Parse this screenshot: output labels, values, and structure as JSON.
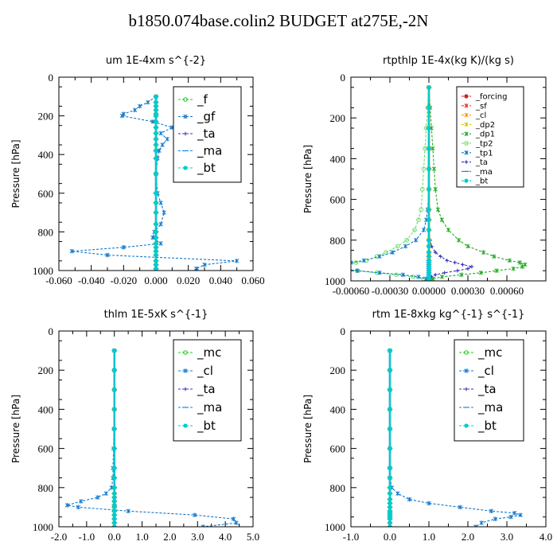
{
  "figure": {
    "title": "b1850.074base.colin2  BUDGET at275E,-2N"
  },
  "chart_data": [
    {
      "type": "line",
      "title": "um   1E-4xm s^{-2}",
      "ylabel": "Pressure [hPa]",
      "xlim": [
        -0.06,
        0.06
      ],
      "ylim": [
        1000,
        0
      ],
      "xticks": [
        -0.06,
        -0.04,
        -0.02,
        0.0,
        0.02,
        0.04,
        0.06
      ],
      "xtick_labels": [
        "-0.060",
        "-0.040",
        "-0.020",
        "0.000",
        "0.020",
        "0.040",
        "0.060"
      ],
      "yticks": [
        0,
        200,
        400,
        600,
        800,
        1000
      ],
      "grid": false,
      "legend_position": "top-right",
      "levels": [
        100,
        130,
        150,
        170,
        190,
        200,
        230,
        260,
        290,
        320,
        350,
        380,
        420,
        500,
        600,
        650,
        700,
        760,
        800,
        830,
        860,
        880,
        900,
        920,
        950,
        970,
        990,
        1000
      ],
      "series": [
        {
          "name": "_f",
          "color": "#22cc22",
          "values": [
            0,
            0,
            0,
            0,
            0,
            0,
            0,
            0,
            0,
            0,
            0,
            0,
            0,
            0,
            0,
            0,
            0,
            0,
            0,
            0,
            0,
            0,
            0,
            0,
            0,
            0,
            0,
            0
          ]
        },
        {
          "name": "_gf",
          "color": "#1177cc",
          "values": [
            0,
            -0.005,
            -0.01,
            -0.013,
            -0.02,
            -0.021,
            -0.002,
            0.01,
            0.003,
            0.007,
            0.004,
            0.002,
            0.001,
            0.0,
            0.001,
            0.003,
            0.005,
            0.003,
            -0.001,
            -0.002,
            0.003,
            -0.02,
            -0.052,
            -0.03,
            0.05,
            0.03,
            0.025,
            0.025
          ]
        },
        {
          "name": "_ta",
          "color": "#3333bb",
          "values": [
            0,
            0,
            0,
            0,
            0,
            0,
            0,
            0,
            0,
            0,
            0,
            0,
            0,
            0,
            0,
            0,
            0,
            0,
            0,
            0,
            0,
            0,
            0,
            0,
            0,
            0,
            0,
            0
          ]
        },
        {
          "name": "_ma",
          "color": "#1188dd",
          "values": [
            0,
            0,
            0,
            0,
            0,
            0,
            0,
            0,
            0,
            0,
            0,
            0,
            0,
            0,
            0,
            0,
            0,
            0,
            0,
            0,
            0,
            0,
            0,
            0,
            0,
            0,
            0,
            0
          ]
        },
        {
          "name": "_bt",
          "color": "#00cccc",
          "values": [
            0,
            0,
            0,
            0,
            0,
            0,
            0,
            0,
            0,
            0,
            0,
            0,
            0,
            0,
            0,
            0,
            0,
            0,
            0,
            0,
            0,
            0,
            0,
            0,
            0,
            0,
            0,
            0
          ]
        }
      ]
    },
    {
      "type": "line",
      "title": "rtpthlp   1E-4x(kg K)/(kg s)",
      "ylabel": "Pressure [hPa]",
      "xlim": [
        -0.0006,
        0.0009
      ],
      "ylim": [
        1000,
        0
      ],
      "xticks": [
        -0.0006,
        -0.0003,
        0.0,
        0.0003,
        0.0006
      ],
      "xtick_labels": [
        "-0.00060",
        "-0.00030",
        "0.00000",
        "0.00030",
        "0.00060"
      ],
      "yticks": [
        0,
        200,
        400,
        600,
        800,
        1000
      ],
      "grid": false,
      "legend_position": "top-right",
      "levels": [
        50,
        150,
        250,
        350,
        450,
        550,
        650,
        700,
        750,
        800,
        830,
        860,
        880,
        900,
        910,
        920,
        930,
        940,
        950,
        960,
        970,
        980,
        990,
        1000
      ],
      "series": [
        {
          "name": "_forcing",
          "color": "#cc2222",
          "values": [
            0,
            0,
            0,
            0,
            0,
            0,
            0,
            0,
            0,
            0,
            0,
            0,
            0,
            0,
            0,
            0,
            0,
            0,
            0,
            0,
            0,
            0,
            0,
            0
          ]
        },
        {
          "name": "_sf",
          "color": "#ee3333",
          "values": [
            0,
            0,
            0,
            0,
            0,
            0,
            0,
            0,
            0,
            0,
            0,
            0,
            0,
            0,
            0,
            0,
            0,
            0,
            0,
            0,
            0,
            0,
            0,
            0
          ]
        },
        {
          "name": "_cl",
          "color": "#ff9900",
          "values": [
            0,
            0,
            0,
            0,
            0,
            0,
            0,
            0,
            0,
            0,
            0,
            0,
            0,
            0,
            0,
            0,
            0,
            0,
            0,
            0,
            0,
            0,
            0,
            0
          ]
        },
        {
          "name": "_dp2",
          "color": "#cccc00",
          "values": [
            0,
            0,
            0,
            0,
            0,
            0,
            0,
            0,
            0,
            0,
            0,
            0,
            0,
            0,
            0,
            0,
            0,
            0,
            0,
            0,
            0,
            0,
            0,
            0
          ]
        },
        {
          "name": "_dp1",
          "color": "#22aa22",
          "values": [
            0,
            1e-05,
            2e-05,
            3e-05,
            4e-05,
            5e-05,
            7e-05,
            0.0001,
            0.00015,
            0.00023,
            0.0003,
            0.00042,
            0.0005,
            0.00062,
            0.0007,
            0.00074,
            0.00072,
            0.00065,
            0.00052,
            0.0004,
            0.00025,
            0.0001,
            3e-05,
            0
          ]
        },
        {
          "name": "_tp2",
          "color": "#66dd66",
          "values": [
            0,
            -1e-05,
            -2e-05,
            -3e-05,
            -4e-05,
            -5e-05,
            -6e-05,
            -8e-05,
            -0.00011,
            -0.00017,
            -0.00024,
            -0.00033,
            -0.0004,
            -0.00048,
            -0.00056,
            -0.00065,
            -0.0007,
            -0.00066,
            -0.00055,
            -0.0004,
            -0.00025,
            -0.00012,
            -4e-05,
            0
          ]
        },
        {
          "name": "_tp1",
          "color": "#1177cc",
          "values": [
            0,
            0,
            0,
            0,
            0,
            0,
            -1e-05,
            -2e-05,
            -4e-05,
            -0.0001,
            -0.00018,
            -0.00028,
            -0.00038,
            -0.0005,
            -0.0006,
            -0.00068,
            -0.00074,
            -0.00068,
            -0.00055,
            -0.00038,
            -0.0002,
            -8e-05,
            -2e-05,
            0
          ]
        },
        {
          "name": "_ta",
          "color": "#3333bb",
          "values": [
            0,
            0,
            0,
            0,
            0,
            0,
            0,
            0,
            0,
            1e-05,
            2e-05,
            5e-05,
            9e-05,
            0.00014,
            0.0002,
            0.00026,
            0.00033,
            0.0003,
            0.00022,
            0.00012,
            5e-05,
            2e-05,
            0,
            0
          ]
        },
        {
          "name": "_ma",
          "color": "#1188dd",
          "values": [
            0,
            0,
            0,
            0,
            0,
            0,
            0,
            0,
            0,
            0,
            0,
            0,
            0,
            0,
            0,
            0,
            0,
            0,
            0,
            0,
            0,
            0,
            0,
            0
          ]
        },
        {
          "name": "_bt",
          "color": "#00cccc",
          "values": [
            0,
            0,
            0,
            0,
            0,
            0,
            0,
            0,
            0,
            0,
            0,
            0,
            0,
            0,
            0,
            0,
            0,
            0,
            0,
            0,
            0,
            0,
            0,
            0
          ]
        }
      ]
    },
    {
      "type": "line",
      "title": "thlm   1E-5xK s^{-1}",
      "ylabel": "Pressure [hPa]",
      "xlim": [
        -2.0,
        5.0
      ],
      "ylim": [
        1000,
        0
      ],
      "xticks": [
        -2,
        -1,
        0,
        1,
        2,
        3,
        4,
        5
      ],
      "xtick_labels": [
        "-2.0",
        "-1.0",
        "0.0",
        "1.0",
        "2.0",
        "3.0",
        "4.0",
        "5.0"
      ],
      "yticks": [
        0,
        200,
        400,
        600,
        800,
        1000
      ],
      "grid": false,
      "legend_position": "top-right",
      "levels": [
        100,
        200,
        300,
        400,
        500,
        600,
        700,
        750,
        800,
        830,
        850,
        870,
        890,
        900,
        920,
        940,
        960,
        980,
        1000
      ],
      "series": [
        {
          "name": "_mc",
          "color": "#22cc22",
          "values": [
            0,
            0,
            0,
            0,
            0,
            0,
            0,
            0,
            0,
            0,
            0,
            0,
            0,
            0,
            0,
            0,
            0,
            0,
            0
          ]
        },
        {
          "name": "_cl",
          "color": "#1177cc",
          "values": [
            0,
            0,
            0,
            0,
            -0.02,
            -0.03,
            -0.05,
            -0.05,
            -0.1,
            -0.3,
            -0.6,
            -1.2,
            -1.7,
            -1.3,
            0.5,
            2.9,
            4.3,
            4.4,
            3.2
          ]
        },
        {
          "name": "_ta",
          "color": "#3333bb",
          "values": [
            0,
            0,
            0,
            0,
            0,
            0,
            0,
            0,
            0,
            0,
            0,
            0,
            0,
            0,
            0,
            0,
            0,
            0,
            0
          ]
        },
        {
          "name": "_ma",
          "color": "#1188dd",
          "values": [
            0,
            0,
            0,
            0,
            0,
            0,
            0,
            0,
            0,
            0,
            0,
            0,
            0,
            0,
            0,
            0,
            0,
            0,
            0
          ]
        },
        {
          "name": "_bt",
          "color": "#00cccc",
          "values": [
            0,
            0,
            0,
            0,
            0,
            0,
            0,
            0,
            0,
            0,
            0,
            0,
            0,
            0,
            0,
            0,
            0,
            0,
            0
          ]
        }
      ]
    },
    {
      "type": "line",
      "title": "rtm   1E-8xkg kg^{-1} s^{-1}",
      "ylabel": "Pressure [hPa]",
      "xlim": [
        -1.0,
        4.0
      ],
      "ylim": [
        1000,
        0
      ],
      "xticks": [
        -1,
        0,
        1,
        2,
        3,
        4
      ],
      "xtick_labels": [
        "-1.0",
        "0.0",
        "1.0",
        "2.0",
        "3.0",
        "4.0"
      ],
      "yticks": [
        0,
        200,
        400,
        600,
        800,
        1000
      ],
      "grid": false,
      "legend_position": "top-right",
      "levels": [
        100,
        200,
        300,
        400,
        500,
        600,
        700,
        750,
        800,
        830,
        860,
        880,
        900,
        920,
        930,
        940,
        950,
        960,
        980,
        1000
      ],
      "series": [
        {
          "name": "_mc",
          "color": "#22cc22",
          "values": [
            0,
            0,
            0,
            0,
            0,
            0,
            0,
            0,
            0,
            0,
            0,
            0,
            0,
            0,
            0,
            0,
            0,
            0,
            0,
            0
          ]
        },
        {
          "name": "_cl",
          "color": "#1177cc",
          "values": [
            0,
            0,
            0,
            0,
            0,
            0,
            0,
            0,
            0.05,
            0.2,
            0.5,
            1.0,
            1.8,
            2.6,
            3.2,
            3.35,
            3.1,
            2.7,
            2.35,
            2.2
          ]
        },
        {
          "name": "_ta",
          "color": "#3333bb",
          "values": [
            0,
            0,
            0,
            0,
            0,
            0,
            0,
            0,
            0,
            0,
            0,
            0,
            0,
            0,
            0,
            0,
            0,
            0,
            0,
            0
          ]
        },
        {
          "name": "_ma",
          "color": "#1188dd",
          "values": [
            0,
            0,
            0,
            0,
            0,
            0,
            0,
            0,
            0,
            0,
            0,
            0,
            0,
            0,
            0,
            0,
            0,
            0,
            0,
            0
          ]
        },
        {
          "name": "_bt",
          "color": "#00cccc",
          "values": [
            0,
            0,
            0,
            0,
            0,
            0,
            0,
            0,
            0,
            0,
            0,
            0,
            0,
            0,
            0,
            0,
            0,
            0,
            0,
            0
          ]
        }
      ]
    }
  ]
}
